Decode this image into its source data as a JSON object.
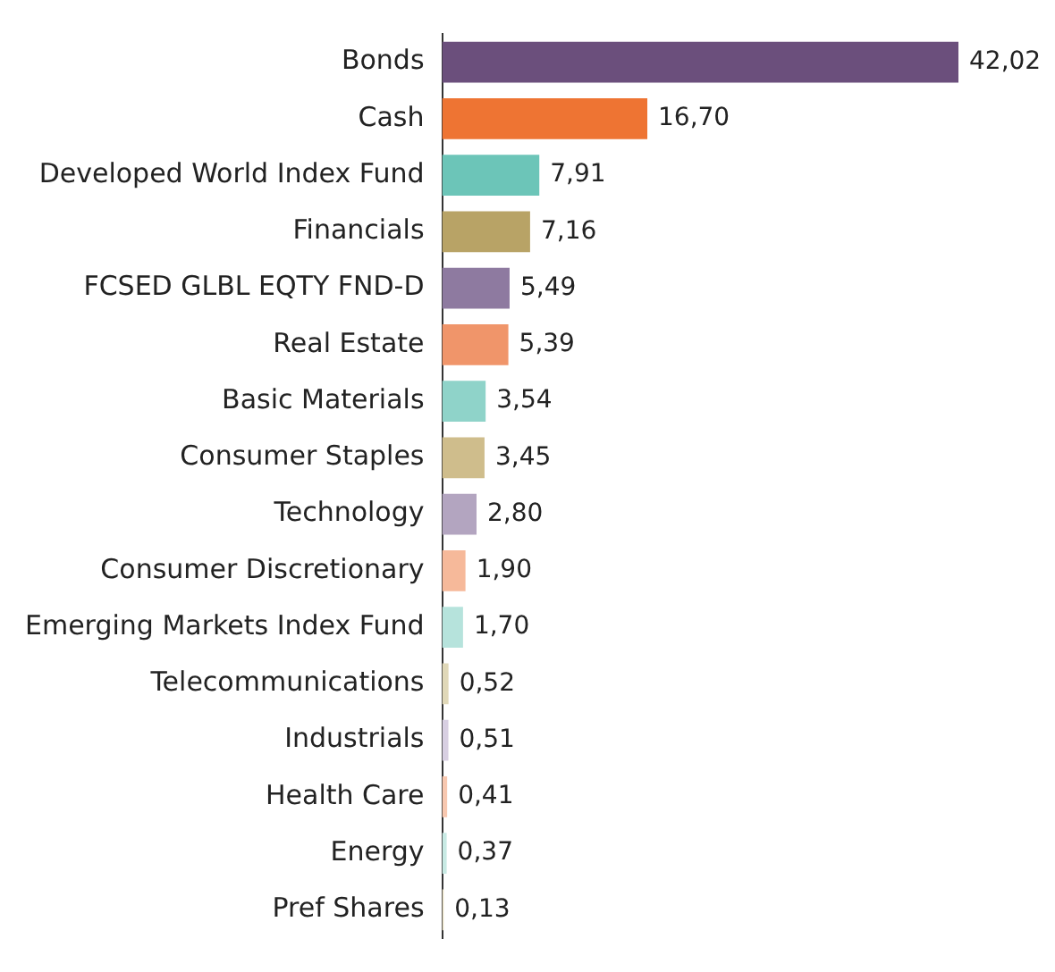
{
  "chart_data": {
    "type": "bar",
    "orientation": "horizontal",
    "data_labels": false,
    "categories": [
      "Bonds",
      "Cash",
      "Developed World Index Fund",
      "Financials",
      "FCSED GLBL EQTY FND-D",
      "Real Estate",
      "Basic Materials",
      "Consumer Staples",
      "Technology",
      "Consumer Discretionary",
      "Emerging Markets Index Fund",
      "Telecommunications",
      "Industrials",
      "Health Care",
      "Energy",
      "Pref Shares"
    ],
    "values": [
      42.02,
      16.7,
      7.91,
      7.16,
      5.49,
      5.39,
      3.54,
      3.45,
      2.8,
      1.9,
      1.7,
      0.52,
      0.51,
      0.41,
      0.37,
      0.13
    ],
    "value_labels": [
      "42,02",
      "16,70",
      "7,91",
      "7,16",
      "5,49",
      "5,39",
      "3,54",
      "3,45",
      "2,80",
      "1,90",
      "1,70",
      "0,52",
      "0,51",
      "0,41",
      "0,37",
      "0,13"
    ],
    "colors": [
      "#6b4f7c",
      "#ee7433",
      "#6cc5b8",
      "#b8a366",
      "#8e7aa0",
      "#f0956a",
      "#8fd3c9",
      "#cfbd8c",
      "#b3a5c0",
      "#f6b99a",
      "#b6e3dc",
      "#e0d8b8",
      "#d8cfe2",
      "#f8c8b0",
      "#c8eae4",
      "#e8dfc4"
    ],
    "grid": false,
    "legend": false
  }
}
